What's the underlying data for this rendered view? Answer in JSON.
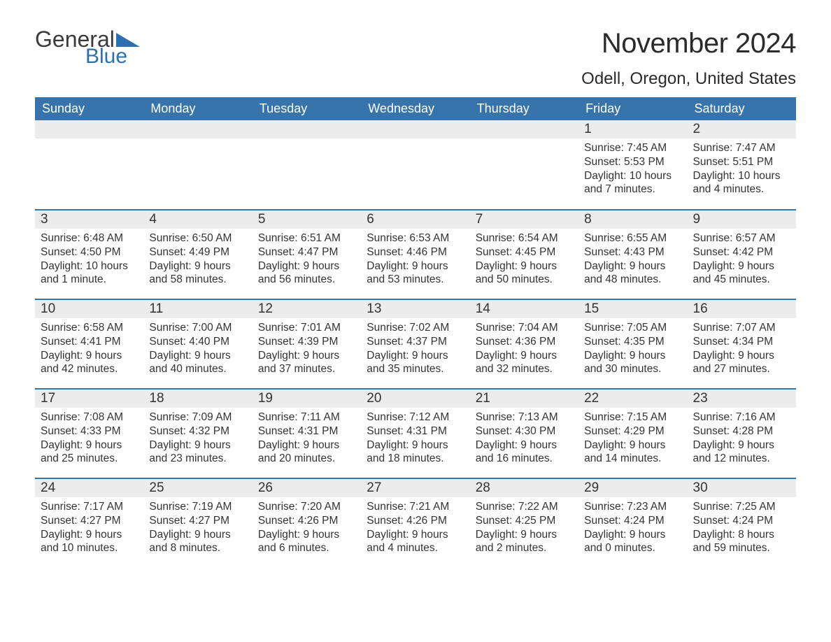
{
  "brand": {
    "general": "General",
    "blue": "Blue",
    "tri_color": "#2e6fb0"
  },
  "title": "November 2024",
  "location": "Odell, Oregon, United States",
  "colors": {
    "header_bg": "#3874ac",
    "header_text": "#ffffff",
    "row_border": "#3874ac",
    "daynum_bg": "#ececec",
    "text": "#333333",
    "background": "#ffffff"
  },
  "daysOfWeek": [
    "Sunday",
    "Monday",
    "Tuesday",
    "Wednesday",
    "Thursday",
    "Friday",
    "Saturday"
  ],
  "weeks": [
    [
      null,
      null,
      null,
      null,
      null,
      {
        "n": "1",
        "sunrise": "Sunrise: 7:45 AM",
        "sunset": "Sunset: 5:53 PM",
        "daylight": "Daylight: 10 hours and 7 minutes."
      },
      {
        "n": "2",
        "sunrise": "Sunrise: 7:47 AM",
        "sunset": "Sunset: 5:51 PM",
        "daylight": "Daylight: 10 hours and 4 minutes."
      }
    ],
    [
      {
        "n": "3",
        "sunrise": "Sunrise: 6:48 AM",
        "sunset": "Sunset: 4:50 PM",
        "daylight": "Daylight: 10 hours and 1 minute."
      },
      {
        "n": "4",
        "sunrise": "Sunrise: 6:50 AM",
        "sunset": "Sunset: 4:49 PM",
        "daylight": "Daylight: 9 hours and 58 minutes."
      },
      {
        "n": "5",
        "sunrise": "Sunrise: 6:51 AM",
        "sunset": "Sunset: 4:47 PM",
        "daylight": "Daylight: 9 hours and 56 minutes."
      },
      {
        "n": "6",
        "sunrise": "Sunrise: 6:53 AM",
        "sunset": "Sunset: 4:46 PM",
        "daylight": "Daylight: 9 hours and 53 minutes."
      },
      {
        "n": "7",
        "sunrise": "Sunrise: 6:54 AM",
        "sunset": "Sunset: 4:45 PM",
        "daylight": "Daylight: 9 hours and 50 minutes."
      },
      {
        "n": "8",
        "sunrise": "Sunrise: 6:55 AM",
        "sunset": "Sunset: 4:43 PM",
        "daylight": "Daylight: 9 hours and 48 minutes."
      },
      {
        "n": "9",
        "sunrise": "Sunrise: 6:57 AM",
        "sunset": "Sunset: 4:42 PM",
        "daylight": "Daylight: 9 hours and 45 minutes."
      }
    ],
    [
      {
        "n": "10",
        "sunrise": "Sunrise: 6:58 AM",
        "sunset": "Sunset: 4:41 PM",
        "daylight": "Daylight: 9 hours and 42 minutes."
      },
      {
        "n": "11",
        "sunrise": "Sunrise: 7:00 AM",
        "sunset": "Sunset: 4:40 PM",
        "daylight": "Daylight: 9 hours and 40 minutes."
      },
      {
        "n": "12",
        "sunrise": "Sunrise: 7:01 AM",
        "sunset": "Sunset: 4:39 PM",
        "daylight": "Daylight: 9 hours and 37 minutes."
      },
      {
        "n": "13",
        "sunrise": "Sunrise: 7:02 AM",
        "sunset": "Sunset: 4:37 PM",
        "daylight": "Daylight: 9 hours and 35 minutes."
      },
      {
        "n": "14",
        "sunrise": "Sunrise: 7:04 AM",
        "sunset": "Sunset: 4:36 PM",
        "daylight": "Daylight: 9 hours and 32 minutes."
      },
      {
        "n": "15",
        "sunrise": "Sunrise: 7:05 AM",
        "sunset": "Sunset: 4:35 PM",
        "daylight": "Daylight: 9 hours and 30 minutes."
      },
      {
        "n": "16",
        "sunrise": "Sunrise: 7:07 AM",
        "sunset": "Sunset: 4:34 PM",
        "daylight": "Daylight: 9 hours and 27 minutes."
      }
    ],
    [
      {
        "n": "17",
        "sunrise": "Sunrise: 7:08 AM",
        "sunset": "Sunset: 4:33 PM",
        "daylight": "Daylight: 9 hours and 25 minutes."
      },
      {
        "n": "18",
        "sunrise": "Sunrise: 7:09 AM",
        "sunset": "Sunset: 4:32 PM",
        "daylight": "Daylight: 9 hours and 23 minutes."
      },
      {
        "n": "19",
        "sunrise": "Sunrise: 7:11 AM",
        "sunset": "Sunset: 4:31 PM",
        "daylight": "Daylight: 9 hours and 20 minutes."
      },
      {
        "n": "20",
        "sunrise": "Sunrise: 7:12 AM",
        "sunset": "Sunset: 4:31 PM",
        "daylight": "Daylight: 9 hours and 18 minutes."
      },
      {
        "n": "21",
        "sunrise": "Sunrise: 7:13 AM",
        "sunset": "Sunset: 4:30 PM",
        "daylight": "Daylight: 9 hours and 16 minutes."
      },
      {
        "n": "22",
        "sunrise": "Sunrise: 7:15 AM",
        "sunset": "Sunset: 4:29 PM",
        "daylight": "Daylight: 9 hours and 14 minutes."
      },
      {
        "n": "23",
        "sunrise": "Sunrise: 7:16 AM",
        "sunset": "Sunset: 4:28 PM",
        "daylight": "Daylight: 9 hours and 12 minutes."
      }
    ],
    [
      {
        "n": "24",
        "sunrise": "Sunrise: 7:17 AM",
        "sunset": "Sunset: 4:27 PM",
        "daylight": "Daylight: 9 hours and 10 minutes."
      },
      {
        "n": "25",
        "sunrise": "Sunrise: 7:19 AM",
        "sunset": "Sunset: 4:27 PM",
        "daylight": "Daylight: 9 hours and 8 minutes."
      },
      {
        "n": "26",
        "sunrise": "Sunrise: 7:20 AM",
        "sunset": "Sunset: 4:26 PM",
        "daylight": "Daylight: 9 hours and 6 minutes."
      },
      {
        "n": "27",
        "sunrise": "Sunrise: 7:21 AM",
        "sunset": "Sunset: 4:26 PM",
        "daylight": "Daylight: 9 hours and 4 minutes."
      },
      {
        "n": "28",
        "sunrise": "Sunrise: 7:22 AM",
        "sunset": "Sunset: 4:25 PM",
        "daylight": "Daylight: 9 hours and 2 minutes."
      },
      {
        "n": "29",
        "sunrise": "Sunrise: 7:23 AM",
        "sunset": "Sunset: 4:24 PM",
        "daylight": "Daylight: 9 hours and 0 minutes."
      },
      {
        "n": "30",
        "sunrise": "Sunrise: 7:25 AM",
        "sunset": "Sunset: 4:24 PM",
        "daylight": "Daylight: 8 hours and 59 minutes."
      }
    ]
  ]
}
